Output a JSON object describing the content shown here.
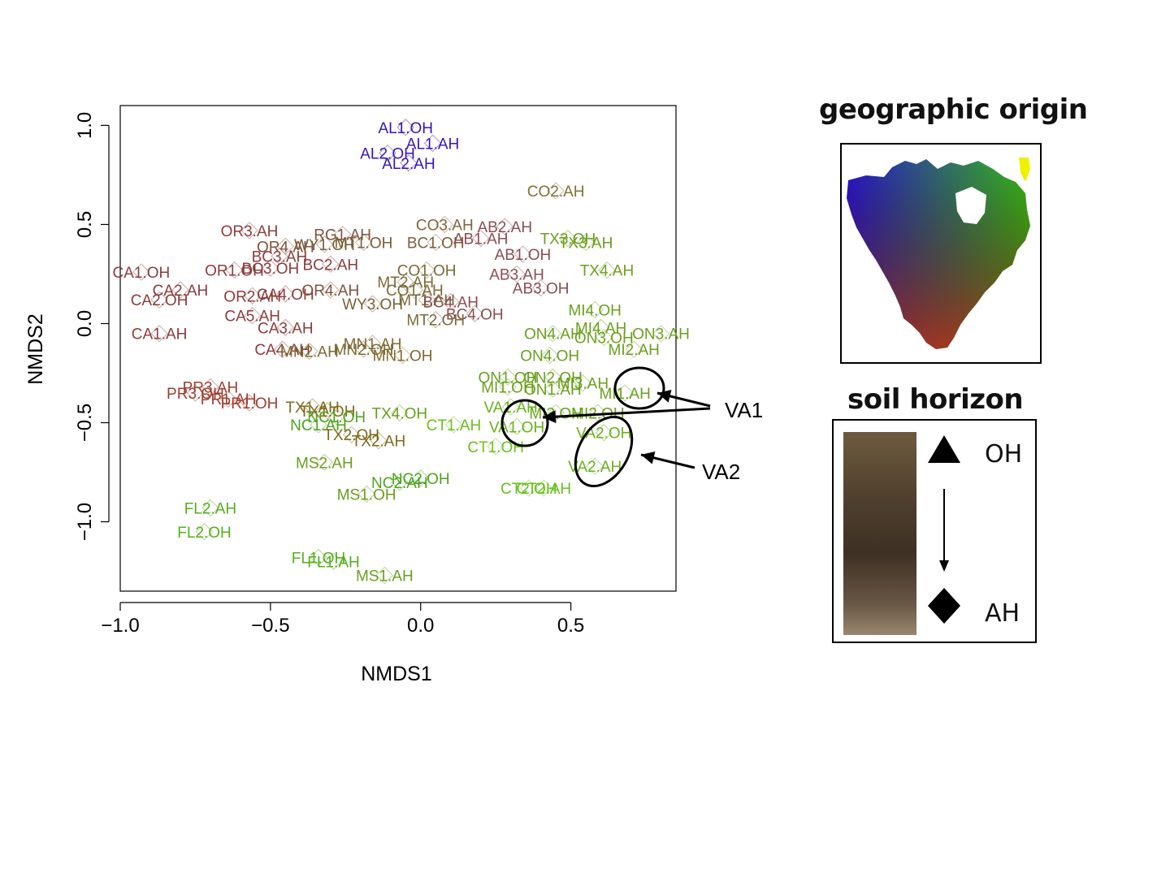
{
  "chart_data": {
    "type": "scatter",
    "xlabel": "NMDS1",
    "ylabel": "NMDS2",
    "xlim": [
      -1.0,
      0.85
    ],
    "ylim": [
      -1.35,
      1.1
    ],
    "xticks": [
      {
        "v": -1.0,
        "label": "−1.0"
      },
      {
        "v": -0.5,
        "label": "−0.5"
      },
      {
        "v": 0.0,
        "label": "0.0"
      },
      {
        "v": 0.5,
        "label": "0.5"
      }
    ],
    "yticks": [
      {
        "v": 1.0,
        "label": "1.0"
      },
      {
        "v": 0.5,
        "label": "0.5"
      },
      {
        "v": 0.0,
        "label": "0.0"
      },
      {
        "v": -0.5,
        "label": "−0.5"
      },
      {
        "v": -1.0,
        "label": "−1.0"
      }
    ],
    "grid": false,
    "points": [
      {
        "label": "AL1.OH",
        "x": -0.05,
        "y": 0.99,
        "color": "#3a14b4"
      },
      {
        "label": "AL1.AH",
        "x": 0.04,
        "y": 0.91,
        "color": "#3a14b4"
      },
      {
        "label": "AL2.OH",
        "x": -0.11,
        "y": 0.86,
        "color": "#3a14b4"
      },
      {
        "label": "AL2.AH",
        "x": -0.04,
        "y": 0.81,
        "color": "#3a14b4"
      },
      {
        "label": "CO2.AH",
        "x": 0.45,
        "y": 0.67,
        "color": "#7e7232"
      },
      {
        "label": "OR3.AH",
        "x": -0.57,
        "y": 0.47,
        "color": "#8b3c3c"
      },
      {
        "label": "RG1.AH",
        "x": -0.26,
        "y": 0.45,
        "color": "#82503c"
      },
      {
        "label": "CO3.AH",
        "x": 0.08,
        "y": 0.5,
        "color": "#82643c"
      },
      {
        "label": "AB2.AH",
        "x": 0.28,
        "y": 0.49,
        "color": "#8a4e50"
      },
      {
        "label": "TX3.OH",
        "x": 0.49,
        "y": 0.43,
        "color": "#6aa01e"
      },
      {
        "label": "TX3.AH",
        "x": 0.55,
        "y": 0.41,
        "color": "#6aa01e"
      },
      {
        "label": "OR4.AH",
        "x": -0.45,
        "y": 0.39,
        "color": "#82503c"
      },
      {
        "label": "WY1.OH",
        "x": -0.32,
        "y": 0.4,
        "color": "#7a5e3a"
      },
      {
        "label": "MT1.OH",
        "x": -0.19,
        "y": 0.41,
        "color": "#7a5e3a"
      },
      {
        "label": "BC1.OH",
        "x": 0.05,
        "y": 0.41,
        "color": "#7a5e3a"
      },
      {
        "label": "AB1.AH",
        "x": 0.2,
        "y": 0.43,
        "color": "#8a4e50"
      },
      {
        "label": "AB1.OH",
        "x": 0.34,
        "y": 0.35,
        "color": "#8a4e50"
      },
      {
        "label": "BC3.AH",
        "x": -0.47,
        "y": 0.34,
        "color": "#8b3c3c"
      },
      {
        "label": "BC2.AH",
        "x": -0.3,
        "y": 0.3,
        "color": "#8b3c3c"
      },
      {
        "label": "TX4.AH",
        "x": 0.62,
        "y": 0.27,
        "color": "#6aa01e"
      },
      {
        "label": "CA1.OH",
        "x": -0.93,
        "y": 0.26,
        "color": "#8b3c3c"
      },
      {
        "label": "OR1.OH",
        "x": -0.62,
        "y": 0.27,
        "color": "#8b3c3c"
      },
      {
        "label": "BC3.OH",
        "x": -0.5,
        "y": 0.28,
        "color": "#8b3c3c"
      },
      {
        "label": "CO1.OH",
        "x": 0.02,
        "y": 0.27,
        "color": "#7a6a3a"
      },
      {
        "label": "AB3.AH",
        "x": 0.32,
        "y": 0.25,
        "color": "#8a4e50"
      },
      {
        "label": "AB3.OH",
        "x": 0.4,
        "y": 0.18,
        "color": "#8a4e50"
      },
      {
        "label": "CA2.AH",
        "x": -0.8,
        "y": 0.17,
        "color": "#8b3c3c"
      },
      {
        "label": "OR2.AH",
        "x": -0.56,
        "y": 0.14,
        "color": "#8b3c3c"
      },
      {
        "label": "CA4.OH",
        "x": -0.45,
        "y": 0.15,
        "color": "#8b3c3c"
      },
      {
        "label": "OR4.AH",
        "x": -0.3,
        "y": 0.17,
        "color": "#82503c"
      },
      {
        "label": "MT2.AH",
        "x": -0.05,
        "y": 0.21,
        "color": "#7e6a3a"
      },
      {
        "label": "CO1.AH",
        "x": -0.02,
        "y": 0.17,
        "color": "#7e6a3a"
      },
      {
        "label": "WY3.OH",
        "x": -0.16,
        "y": 0.1,
        "color": "#7a5e3a"
      },
      {
        "label": "MT1.AH",
        "x": 0.02,
        "y": 0.12,
        "color": "#7a6a3a"
      },
      {
        "label": "BC4.AH",
        "x": 0.1,
        "y": 0.11,
        "color": "#8a4e50"
      },
      {
        "label": "CA2.OH",
        "x": -0.87,
        "y": 0.12,
        "color": "#8b3c3c"
      },
      {
        "label": "BC4.OH",
        "x": 0.18,
        "y": 0.05,
        "color": "#8a4e50"
      },
      {
        "label": "MT2.OH",
        "x": 0.05,
        "y": 0.02,
        "color": "#7a6a3a"
      },
      {
        "label": "CA5.AH",
        "x": -0.56,
        "y": 0.04,
        "color": "#8b3c3c"
      },
      {
        "label": "MI4.OH",
        "x": 0.58,
        "y": 0.07,
        "color": "#6aa01e"
      },
      {
        "label": "MI4.AH",
        "x": 0.6,
        "y": -0.02,
        "color": "#6aa01e"
      },
      {
        "label": "CA3.AH",
        "x": -0.45,
        "y": -0.02,
        "color": "#8b3c3c"
      },
      {
        "label": "CA1.AH",
        "x": -0.87,
        "y": -0.05,
        "color": "#8b3c3c"
      },
      {
        "label": "ON4.AH",
        "x": 0.44,
        "y": -0.05,
        "color": "#6aa01e"
      },
      {
        "label": "ON3.OH",
        "x": 0.61,
        "y": -0.07,
        "color": "#6aa01e"
      },
      {
        "label": "ON3.AH",
        "x": 0.8,
        "y": -0.05,
        "color": "#6aa01e"
      },
      {
        "label": "CA4.AH",
        "x": -0.46,
        "y": -0.13,
        "color": "#8b3c3c"
      },
      {
        "label": "MN2.AH",
        "x": -0.37,
        "y": -0.14,
        "color": "#7e6a32"
      },
      {
        "label": "MN2.OH",
        "x": -0.19,
        "y": -0.13,
        "color": "#7e6a32"
      },
      {
        "label": "MN1.AH",
        "x": -0.16,
        "y": -0.1,
        "color": "#7e6a32"
      },
      {
        "label": "MN1.OH",
        "x": -0.06,
        "y": -0.16,
        "color": "#7e6a32"
      },
      {
        "label": "MI2.AH",
        "x": 0.71,
        "y": -0.13,
        "color": "#6aa01e"
      },
      {
        "label": "ON4.OH",
        "x": 0.43,
        "y": -0.16,
        "color": "#6aa01e"
      },
      {
        "label": "ON1.OH",
        "x": 0.29,
        "y": -0.27,
        "color": "#6aa01e"
      },
      {
        "label": "ON2.OH",
        "x": 0.44,
        "y": -0.27,
        "color": "#6aa01e"
      },
      {
        "label": "MI1.OH",
        "x": 0.29,
        "y": -0.32,
        "color": "#6aa01e"
      },
      {
        "label": "ON1.AH",
        "x": 0.44,
        "y": -0.33,
        "color": "#6aa01e"
      },
      {
        "label": "MI3.AH",
        "x": 0.54,
        "y": -0.3,
        "color": "#6aa01e"
      },
      {
        "label": "MI1.AH",
        "x": 0.68,
        "y": -0.35,
        "color": "#6aa01e"
      },
      {
        "label": "PR3.AH",
        "x": -0.7,
        "y": -0.32,
        "color": "#9e3e32"
      },
      {
        "label": "PR3.OH",
        "x": -0.75,
        "y": -0.35,
        "color": "#9e3e32"
      },
      {
        "label": "PR1.AH",
        "x": -0.64,
        "y": -0.38,
        "color": "#9e3e32"
      },
      {
        "label": "PR1.OH",
        "x": -0.57,
        "y": -0.4,
        "color": "#9e3e32"
      },
      {
        "label": "TX1.AH",
        "x": -0.36,
        "y": -0.42,
        "color": "#7e6a1a"
      },
      {
        "label": "TX1.OH",
        "x": -0.31,
        "y": -0.44,
        "color": "#7e6a1a"
      },
      {
        "label": "TX4.OH",
        "x": -0.07,
        "y": -0.45,
        "color": "#6aa01e"
      },
      {
        "label": "MI3.OH",
        "x": 0.45,
        "y": -0.45,
        "color": "#6aa01e"
      },
      {
        "label": "MI2.OH",
        "x": 0.59,
        "y": -0.45,
        "color": "#6aa01e"
      },
      {
        "label": "NC1.OH",
        "x": -0.28,
        "y": -0.47,
        "color": "#4ea41e"
      },
      {
        "label": "NC1.AH",
        "x": -0.34,
        "y": -0.51,
        "color": "#4ea41e"
      },
      {
        "label": "CT1.AH",
        "x": 0.11,
        "y": -0.51,
        "color": "#6ac01e"
      },
      {
        "label": "VA1.OH",
        "x": 0.32,
        "y": -0.52,
        "color": "#6ab01e"
      },
      {
        "label": "VA1.AH",
        "x": 0.3,
        "y": -0.42,
        "color": "#6ab01e"
      },
      {
        "label": "VA2.OH",
        "x": 0.61,
        "y": -0.55,
        "color": "#6ab01e"
      },
      {
        "label": "TX2.OH",
        "x": -0.23,
        "y": -0.56,
        "color": "#7e6a1a"
      },
      {
        "label": "TX2.AH",
        "x": -0.14,
        "y": -0.59,
        "color": "#7e6a1a"
      },
      {
        "label": "CT1.OH",
        "x": 0.25,
        "y": -0.62,
        "color": "#6ac01e"
      },
      {
        "label": "VA2.AH",
        "x": 0.58,
        "y": -0.72,
        "color": "#6ab01e"
      },
      {
        "label": "MS2.AH",
        "x": -0.32,
        "y": -0.7,
        "color": "#6a9e1e"
      },
      {
        "label": "NC2.OH",
        "x": 0.0,
        "y": -0.78,
        "color": "#4ea41e"
      },
      {
        "label": "NC2.AH",
        "x": -0.07,
        "y": -0.8,
        "color": "#4ea41e"
      },
      {
        "label": "CT2.OH",
        "x": 0.36,
        "y": -0.83,
        "color": "#6ac01e"
      },
      {
        "label": "CT2.AH",
        "x": 0.41,
        "y": -0.83,
        "color": "#6ac01e"
      },
      {
        "label": "MS1.OH",
        "x": -0.18,
        "y": -0.86,
        "color": "#6a9e1e"
      },
      {
        "label": "FL2.AH",
        "x": -0.7,
        "y": -0.93,
        "color": "#56ae1e"
      },
      {
        "label": "FL2.OH",
        "x": -0.72,
        "y": -1.05,
        "color": "#56ae1e"
      },
      {
        "label": "FL1.OH",
        "x": -0.34,
        "y": -1.18,
        "color": "#56ae1e"
      },
      {
        "label": "FL1.AH",
        "x": -0.29,
        "y": -1.2,
        "color": "#56ae1e"
      },
      {
        "label": "MS1.AH",
        "x": -0.12,
        "y": -1.27,
        "color": "#6a9e1e"
      }
    ],
    "callouts": [
      {
        "label": "VA1",
        "targets": [
          {
            "x": 0.72,
            "y": -0.34
          },
          {
            "x": 0.35,
            "y": -0.52
          }
        ]
      },
      {
        "label": "VA2",
        "targets": [
          {
            "x": 0.62,
            "y": -0.68
          }
        ]
      }
    ]
  },
  "legend": {
    "geographic_title": "geographic origin",
    "soil_title": "soil horizon",
    "top_horizon": "OH",
    "bottom_horizon": "AH"
  },
  "colors": {
    "map_west": "#2a10e0",
    "map_east": "#3cd20c",
    "map_south": "#c82a0c",
    "map_corner": "#f0f000"
  }
}
